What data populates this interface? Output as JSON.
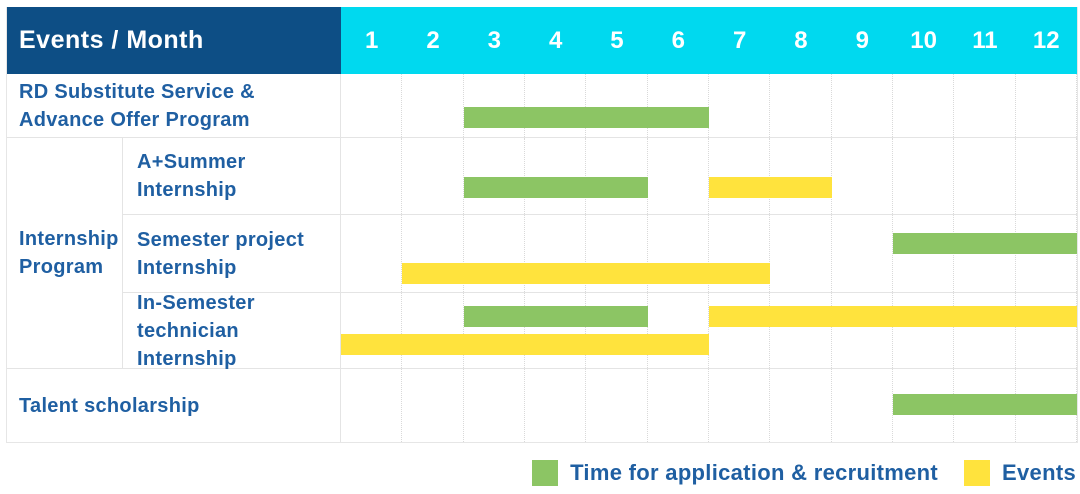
{
  "table": {
    "corner_label": "Events / Month",
    "group_label": "Internship Program",
    "group_label_lines": [
      "Internship",
      "Program"
    ]
  },
  "colors": {
    "title_bg": "#0d4e85",
    "month_header_bg": "#00d9ef",
    "header_text": "#ffffff",
    "label_text": "#1f5fa2",
    "application": "#8cc564",
    "event": "#ffe33d",
    "grid_line": "#d9d9d9",
    "row_line": "#e4e4e4"
  },
  "legend": {
    "items": [
      {
        "kind": "application",
        "label": "Time for application & recruitment"
      },
      {
        "kind": "event",
        "label": "Events"
      }
    ]
  },
  "chart_data": {
    "type": "gantt",
    "title": "Events / Month",
    "x_axis": "Month",
    "months": [
      "1",
      "2",
      "3",
      "4",
      "5",
      "6",
      "7",
      "8",
      "9",
      "10",
      "11",
      "12"
    ],
    "legend_position": "bottom-right",
    "legend_entries": [
      "Time for application & recruitment",
      "Events"
    ],
    "rows": [
      {
        "group": null,
        "label": "RD Substitute Service & Advance Offer Program",
        "label_lines": [
          "RD Substitute Service &",
          "Advance Offer Program"
        ],
        "bars": [
          {
            "kind": "application",
            "start": 3,
            "end": 6,
            "band": 0
          }
        ]
      },
      {
        "group": "Internship Program",
        "label": "A+Summer Internship",
        "label_lines": [
          "A+Summer",
          "Internship"
        ],
        "bars": [
          {
            "kind": "application",
            "start": 3,
            "end": 5,
            "band": 0
          },
          {
            "kind": "event",
            "start": 7,
            "end": 8,
            "band": 0
          }
        ]
      },
      {
        "group": "Internship Program",
        "label": "Semester project Internship",
        "label_lines": [
          "Semester project",
          "Internship"
        ],
        "bars": [
          {
            "kind": "application",
            "start": 10,
            "end": 12,
            "band": 0
          },
          {
            "kind": "event",
            "start": 2,
            "end": 7,
            "band": 1
          }
        ]
      },
      {
        "group": "Internship Program",
        "label": "In-Semester technician Internship",
        "label_lines": [
          "In-Semester",
          "technician Internship"
        ],
        "bars": [
          {
            "kind": "application",
            "start": 3,
            "end": 5,
            "band": 0
          },
          {
            "kind": "event",
            "start": 7,
            "end": 12,
            "band": 0
          },
          {
            "kind": "event",
            "start": 1,
            "end": 6,
            "band": 1
          }
        ]
      },
      {
        "group": null,
        "label": "Talent scholarship",
        "label_lines": [
          "Talent scholarship"
        ],
        "bars": [
          {
            "kind": "application",
            "start": 10,
            "end": 12,
            "band": 0
          }
        ]
      }
    ]
  }
}
